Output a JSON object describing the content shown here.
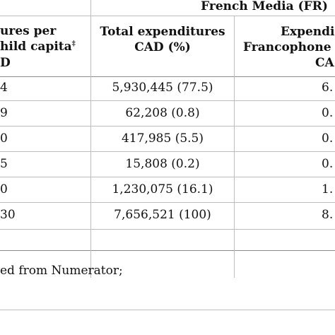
{
  "header": {
    "group_label": "French Media (FR)",
    "col0_line1": "ures per",
    "col0_line2": "hild capita",
    "col0_sup": "‡",
    "col0_line3": "D",
    "col1_line1": "Total expenditures",
    "col1_line2": "CAD (%)",
    "col2_line1": "Expendi",
    "col2_line2": "Francophone",
    "col2_line3": "CA"
  },
  "rows": [
    {
      "col0": "4",
      "col1": "5,930,445 (77.5)",
      "col2": "6."
    },
    {
      "col0": "9",
      "col1": "62,208 (0.8)",
      "col2": "0."
    },
    {
      "col0": "0",
      "col1": "417,985 (5.5)",
      "col2": "0."
    },
    {
      "col0": "5",
      "col1": "15,808 (0.2)",
      "col2": "0."
    },
    {
      "col0": "0",
      "col1": "1,230,075 (16.1)",
      "col2": "1."
    },
    {
      "col0": "30",
      "col1": "7,656,521 (100)",
      "col2": "8."
    }
  ],
  "footnote": "ed from Numerator;"
}
